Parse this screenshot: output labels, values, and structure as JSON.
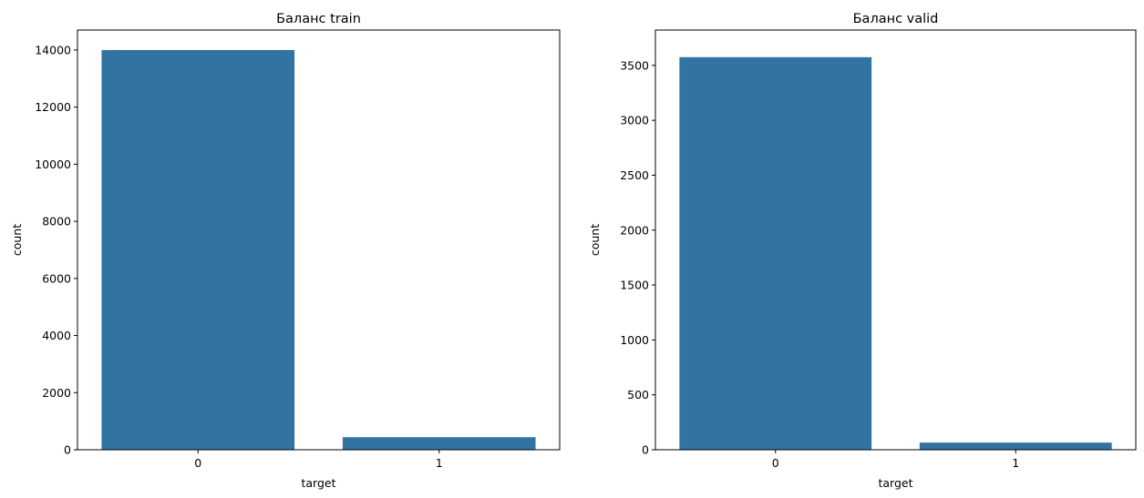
{
  "chart_data": [
    {
      "type": "bar",
      "title": "Баланс train",
      "xlabel": "target",
      "ylabel": "count",
      "categories": [
        "0",
        "1"
      ],
      "values": [
        14000,
        440
      ],
      "ylim": [
        0,
        14700
      ],
      "yticks": [
        0,
        2000,
        4000,
        6000,
        8000,
        10000,
        12000,
        14000
      ],
      "grid": false,
      "bar_color": "#3274a1"
    },
    {
      "type": "bar",
      "title": "Баланс valid",
      "xlabel": "target",
      "ylabel": "count",
      "categories": [
        "0",
        "1"
      ],
      "values": [
        3575,
        65
      ],
      "ylim": [
        0,
        3822
      ],
      "yticks": [
        0,
        500,
        1000,
        1500,
        2000,
        2500,
        3000,
        3500
      ],
      "grid": false,
      "bar_color": "#3274a1"
    }
  ]
}
